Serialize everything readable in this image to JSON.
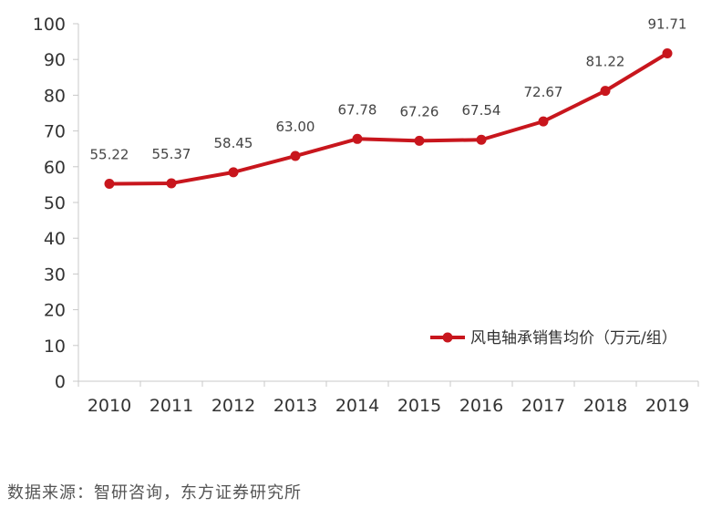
{
  "chart_data": {
    "type": "line",
    "title": "",
    "xlabel": "",
    "ylabel": "",
    "categories": [
      "2010",
      "2011",
      "2012",
      "2013",
      "2014",
      "2015",
      "2016",
      "2017",
      "2018",
      "2019"
    ],
    "series": [
      {
        "name": "风电轴承销售均价（万元/组）",
        "values": [
          55.22,
          55.37,
          58.45,
          63.0,
          67.78,
          67.26,
          67.54,
          72.67,
          81.22,
          91.71
        ],
        "labels": [
          "55.22",
          "55.37",
          "58.45",
          "63.00",
          "67.78",
          "67.26",
          "67.54",
          "72.67",
          "81.22",
          "91.71"
        ],
        "color": "#c8161d"
      }
    ],
    "ylim": [
      0,
      100
    ],
    "yticks": [
      "0",
      "10",
      "20",
      "30",
      "40",
      "50",
      "60",
      "70",
      "80",
      "90",
      "100"
    ],
    "grid": false,
    "legend_position": "bottom-right"
  },
  "source": "数据来源：智研咨询，东方证券研究所"
}
